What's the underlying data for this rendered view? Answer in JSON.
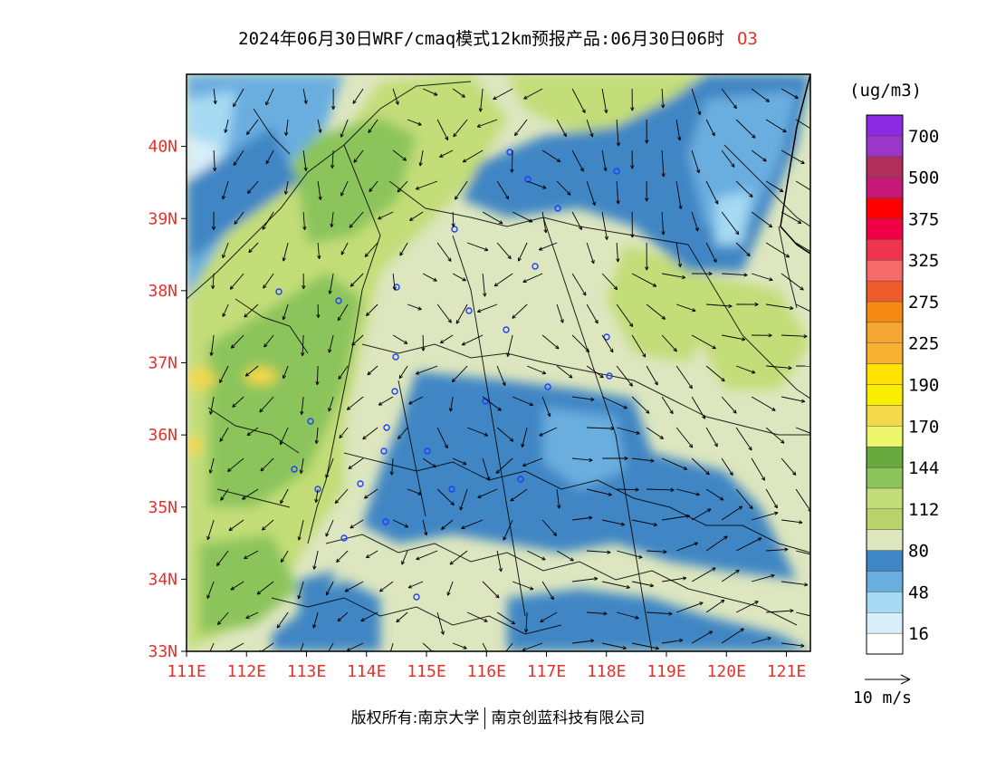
{
  "title": {
    "text": "2024年06月30日WRF/cmaq模式12km预报产品:06月30日06时",
    "species": "O3"
  },
  "colorbar": {
    "unit": "(ug/m3)",
    "levels": [
      {
        "label": "",
        "color": "#ffffff"
      },
      {
        "label": "16",
        "color": "#d8eef9"
      },
      {
        "label": "",
        "color": "#a6daf3"
      },
      {
        "label": "48",
        "color": "#6aaee0"
      },
      {
        "label": "",
        "color": "#3f86c4"
      },
      {
        "label": "80",
        "color": "#dde6bf"
      },
      {
        "label": "",
        "color": "#b9d26a"
      },
      {
        "label": "112",
        "color": "#c3dd78"
      },
      {
        "label": "",
        "color": "#8cc45b"
      },
      {
        "label": "144",
        "color": "#6aa93d"
      },
      {
        "label": "",
        "color": "#eef56a"
      },
      {
        "label": "170",
        "color": "#f2d84a"
      },
      {
        "label": "",
        "color": "#f9ee00"
      },
      {
        "label": "190",
        "color": "#ffe200"
      },
      {
        "label": "",
        "color": "#f7b233"
      },
      {
        "label": "225",
        "color": "#f5a532"
      },
      {
        "label": "",
        "color": "#f58a12"
      },
      {
        "label": "275",
        "color": "#ef5b2b"
      },
      {
        "label": "",
        "color": "#f56a6a"
      },
      {
        "label": "325",
        "color": "#f0334f"
      },
      {
        "label": "",
        "color": "#f00044"
      },
      {
        "label": "375",
        "color": "#ff0000"
      },
      {
        "label": "",
        "color": "#c51877"
      },
      {
        "label": "500",
        "color": "#b02e5a"
      },
      {
        "label": "",
        "color": "#9a37c9"
      },
      {
        "label": "700",
        "color": "#8a2be2"
      }
    ]
  },
  "axes": {
    "lon_range": [
      111,
      121.4
    ],
    "lat_range": [
      33,
      41
    ],
    "x_ticks": [
      "111E",
      "112E",
      "113E",
      "114E",
      "115E",
      "116E",
      "117E",
      "118E",
      "119E",
      "120E",
      "121E"
    ],
    "y_ticks": [
      "33N",
      "34N",
      "35N",
      "36N",
      "37N",
      "38N",
      "39N",
      "40N"
    ]
  },
  "wind_reference": {
    "label": "10 m/s"
  },
  "footer": {
    "left": "版权所有:南京大学",
    "right": "南京创蓝科技有限公司"
  },
  "colors": {
    "tick_text": "#e8312b",
    "species_text": "#e8312b",
    "boundaries": "#000000"
  }
}
